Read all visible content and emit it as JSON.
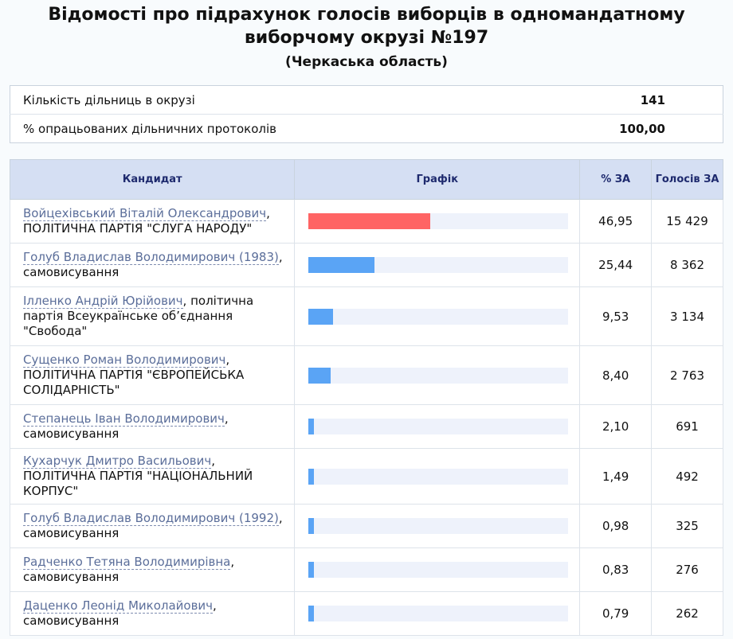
{
  "header": {
    "title": "Відомості про підрахунок голосів виборців в одномандатному виборчому окрузі №197",
    "subtitle": "(Черкаська область)"
  },
  "summary": [
    {
      "label": "Кількість дільниць в окрузі",
      "value": "141"
    },
    {
      "label": "% опрацьованих дільничних протоколів",
      "value": "100,00"
    }
  ],
  "table": {
    "headers": {
      "candidate": "Кандидат",
      "chart": "Графік",
      "percent": "% ЗА",
      "votes": "Голосів ЗА"
    },
    "rows": [
      {
        "name": "Войцехівський Віталій Олександрович",
        "party": ", ПОЛІТИЧНА ПАРТІЯ \"СЛУГА НАРОДУ\"",
        "percent": "46,95",
        "votes": "15 429",
        "share": 0.4695,
        "color": "#ff6464"
      },
      {
        "name": "Голуб Владислав Володимирович (1983)",
        "party": ", самовисування",
        "percent": "25,44",
        "votes": "8 362",
        "share": 0.2544,
        "color": "#5aa4f5"
      },
      {
        "name": "Ілленко Андрій Юрійович",
        "party": ", політична партія Всеукраїнське об’єднання \"Свобода\"",
        "percent": "9,53",
        "votes": "3 134",
        "share": 0.0953,
        "color": "#5aa4f5"
      },
      {
        "name": "Сущенко Роман Володимирович",
        "party": ", ПОЛІТИЧНА ПАРТІЯ \"ЄВРОПЕЙСЬКА СОЛІДАРНІСТЬ\"",
        "percent": "8,40",
        "votes": "2 763",
        "share": 0.084,
        "color": "#5aa4f5"
      },
      {
        "name": "Степанець Іван Володимирович",
        "party": ", самовисування",
        "percent": "2,10",
        "votes": "691",
        "share": 0.021,
        "color": "#5aa4f5"
      },
      {
        "name": "Кухарчук Дмитро Васильович",
        "party": ", ПОЛІТИЧНА ПАРТІЯ \"НАЦІОНАЛЬНИЙ КОРПУС\"",
        "percent": "1,49",
        "votes": "492",
        "share": 0.0149,
        "color": "#5aa4f5"
      },
      {
        "name": "Голуб Владислав Володимирович (1992)",
        "party": ", самовисування",
        "percent": "0,98",
        "votes": "325",
        "share": 0.0098,
        "color": "#5aa4f5"
      },
      {
        "name": "Радченко Тетяна Володимирівна",
        "party": ", самовисування",
        "percent": "0,83",
        "votes": "276",
        "share": 0.0083,
        "color": "#5aa4f5"
      },
      {
        "name": "Даценко Леонід Миколайович",
        "party": ", самовисування",
        "percent": "0,79",
        "votes": "262",
        "share": 0.0079,
        "color": "#5aa4f5"
      }
    ]
  }
}
